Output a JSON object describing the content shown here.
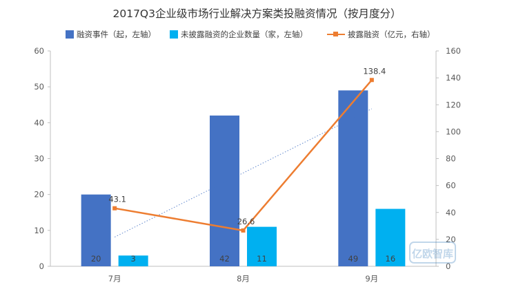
{
  "title": "2017Q3企业级市场行业解决方案类投融资情况（按月度分）",
  "legend": {
    "events": "融资事件（起，左轴）",
    "undisclosed": "未披露融资的企业数量（家，左轴）",
    "amount": "披露融资（亿元，右轴）"
  },
  "watermark": "亿欧智库",
  "colors": {
    "events": "#4472C4",
    "undisclosed": "#00B0F0",
    "amount": "#ED7D31",
    "trend": "#4472C4"
  },
  "chart_data": {
    "type": "bar",
    "categories": [
      "7月",
      "8月",
      "9月"
    ],
    "series": [
      {
        "name": "融资事件（起，左轴）",
        "axis": "left",
        "type": "bar",
        "values": [
          20,
          42,
          49
        ]
      },
      {
        "name": "未披露融资的企业数量（家，左轴）",
        "axis": "left",
        "type": "bar",
        "values": [
          3,
          11,
          16
        ]
      },
      {
        "name": "披露融资（亿元，右轴）",
        "axis": "right",
        "type": "line",
        "values": [
          43.1,
          26.6,
          138.4
        ]
      }
    ],
    "trendline": {
      "series": "披露融资（亿元，右轴）",
      "style": "dotted"
    },
    "left_axis": {
      "ylim": [
        0,
        60
      ],
      "ticks": [
        0,
        10,
        20,
        30,
        40,
        50,
        60
      ]
    },
    "right_axis": {
      "ylim": [
        0,
        160
      ],
      "ticks": [
        0,
        20,
        40,
        60,
        80,
        100,
        120,
        140,
        160
      ]
    },
    "bar_labels": [
      [
        "20",
        "42",
        "49"
      ],
      [
        "3",
        "11",
        "16"
      ]
    ],
    "line_labels": [
      "43.1",
      "26.6",
      "138.4"
    ],
    "grid": false,
    "legend_position": "top"
  }
}
